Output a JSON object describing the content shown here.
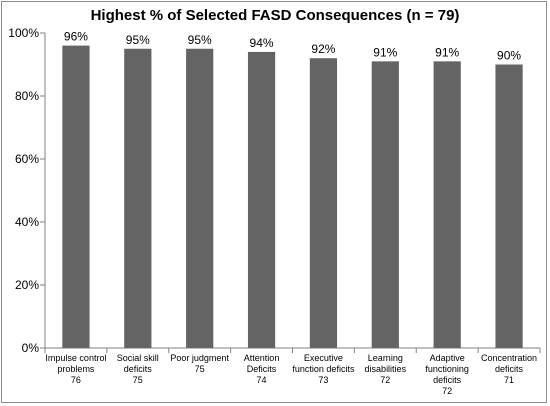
{
  "chart_data": {
    "type": "bar",
    "title": "Highest % of Selected FASD Consequences (n = 79)",
    "xlabel": "",
    "ylabel": "",
    "ylim": [
      0,
      100
    ],
    "yticks": [
      0,
      20,
      40,
      60,
      80,
      100
    ],
    "ytick_labels": [
      "0%",
      "20%",
      "40%",
      "60%",
      "80%",
      "100%"
    ],
    "grid": false,
    "legend": "none",
    "bar_color": "#646464",
    "categories": [
      [
        "Impulse control",
        "problems",
        "76"
      ],
      [
        "Social skill",
        "deficits",
        "75"
      ],
      [
        "Poor judgment",
        "75"
      ],
      [
        "Attention",
        "Deficits",
        "74"
      ],
      [
        "Executive",
        "function deficits",
        "73"
      ],
      [
        "Learning",
        "disabilities",
        "72"
      ],
      [
        "Adaptive",
        "functioning",
        "deficits",
        "72"
      ],
      [
        "Concentration",
        "deficits",
        "71"
      ]
    ],
    "values": [
      96,
      95,
      95,
      94,
      92,
      91,
      91,
      90
    ],
    "data_labels": [
      "96%",
      "95%",
      "95%",
      "94%",
      "92%",
      "91%",
      "91%",
      "90%"
    ]
  }
}
